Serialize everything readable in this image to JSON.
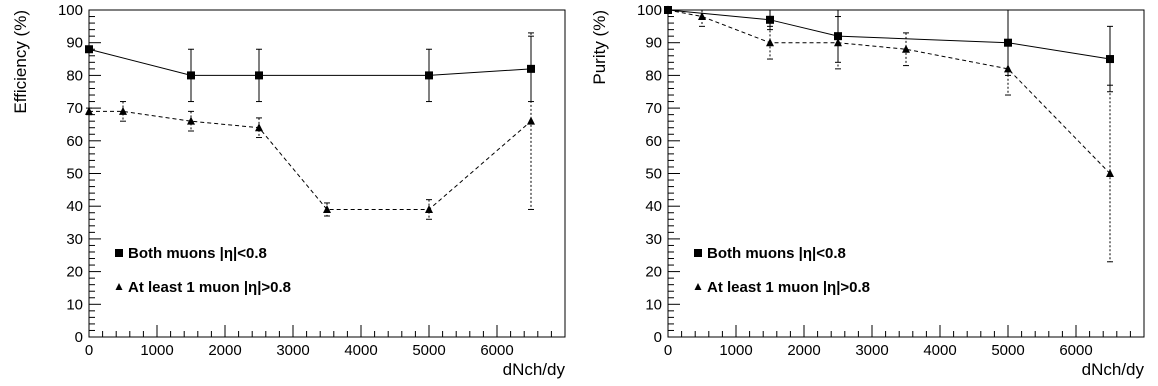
{
  "chart_data": [
    {
      "type": "line",
      "xlabel": "dNch/dy",
      "ylabel": "Efficiency (%)",
      "xlim": [
        0,
        7000
      ],
      "ylim": [
        0,
        100
      ],
      "xticks": [
        0,
        1000,
        2000,
        3000,
        4000,
        5000,
        6000
      ],
      "yticks": [
        0,
        10,
        20,
        30,
        40,
        50,
        60,
        70,
        80,
        90,
        100
      ],
      "grid": false,
      "legend_position": "bottom-left",
      "series": [
        {
          "name": "Both muons |η|<0.8",
          "marker": "square",
          "line": "solid",
          "x": [
            0,
            1500,
            2500,
            5000,
            6500
          ],
          "y": [
            88,
            80,
            80,
            80,
            82
          ],
          "err": [
            0,
            8,
            8,
            8,
            10
          ]
        },
        {
          "name": "At least 1 muon |η|>0.8",
          "marker": "triangle",
          "line": "dashed",
          "x": [
            0,
            500,
            1500,
            2500,
            3500,
            5000,
            6500
          ],
          "y": [
            69,
            69,
            66,
            64,
            39,
            39,
            66
          ],
          "err": [
            1,
            3,
            3,
            3,
            2,
            3,
            27
          ]
        }
      ]
    },
    {
      "type": "line",
      "xlabel": "dNch/dy",
      "ylabel": "Purity (%)",
      "xlim": [
        0,
        7000
      ],
      "ylim": [
        0,
        100
      ],
      "xticks": [
        0,
        1000,
        2000,
        3000,
        4000,
        5000,
        6000
      ],
      "yticks": [
        0,
        10,
        20,
        30,
        40,
        50,
        60,
        70,
        80,
        90,
        100
      ],
      "grid": false,
      "legend_position": "bottom-left",
      "series": [
        {
          "name": "Both muons |η|<0.8",
          "marker": "square",
          "line": "solid",
          "x": [
            0,
            1500,
            2500,
            5000,
            6500
          ],
          "y": [
            100,
            97,
            92,
            90,
            85
          ],
          "err": [
            0,
            3,
            8,
            10,
            10
          ]
        },
        {
          "name": "At least 1 muon |η|>0.8",
          "marker": "triangle",
          "line": "dashed",
          "x": [
            0,
            500,
            1500,
            2500,
            3500,
            5000,
            6500
          ],
          "y": [
            100,
            98,
            90,
            90,
            88,
            82,
            50
          ],
          "err": [
            0,
            3,
            5,
            8,
            5,
            8,
            27
          ]
        }
      ]
    }
  ]
}
